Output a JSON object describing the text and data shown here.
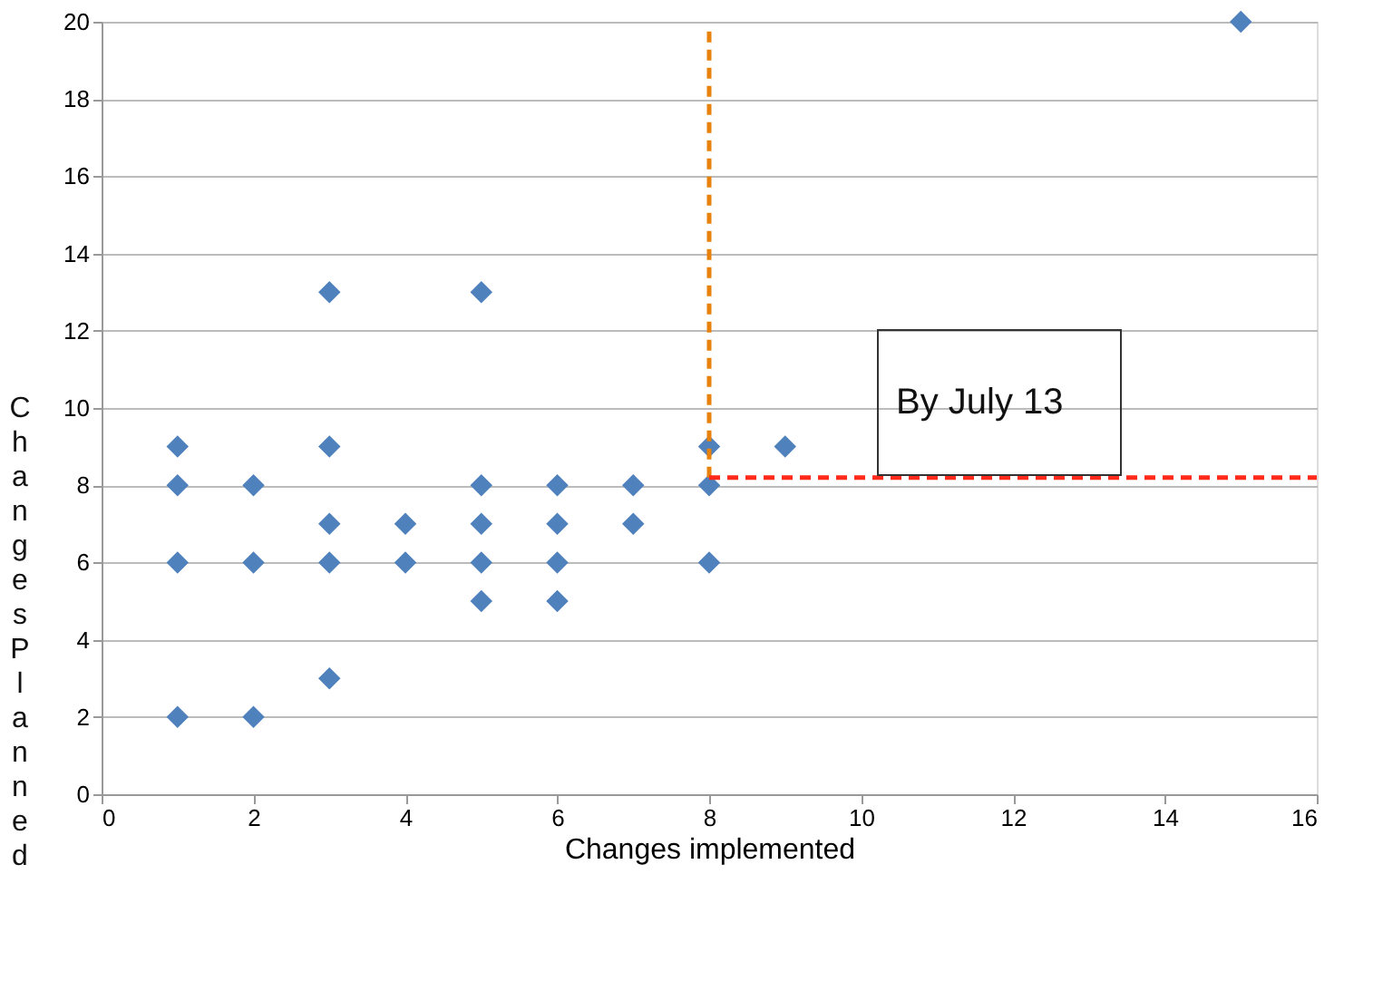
{
  "chart_data": {
    "type": "scatter",
    "xlabel": "Changes implemented",
    "ylabel": "Changes Planned",
    "xlim": [
      0,
      16
    ],
    "xticks": [
      0,
      2,
      4,
      6,
      8,
      10,
      12,
      14,
      16
    ],
    "ylim": [
      0,
      20
    ],
    "yticks": [
      0,
      2,
      4,
      6,
      8,
      10,
      12,
      14,
      16,
      18,
      20
    ],
    "grid": "y",
    "marker": "diamond",
    "series": [
      {
        "color": "#4f81bd",
        "x": [
          1,
          1,
          1,
          1,
          2,
          2,
          2,
          3,
          3,
          3,
          3,
          3,
          4,
          4,
          5,
          5,
          5,
          5,
          5,
          6,
          6,
          6,
          6,
          7,
          7,
          8,
          8,
          8,
          9,
          15
        ],
        "values": [
          9,
          8,
          6,
          2,
          8,
          6,
          2,
          13,
          9,
          7,
          6,
          3,
          7,
          6,
          13,
          8,
          7,
          6,
          5,
          8,
          7,
          6,
          5,
          8,
          7,
          9,
          8,
          6,
          9,
          20
        ]
      },
      {
        "type": "line",
        "color": "#e8820c",
        "line_style": "dashed",
        "marker": "none",
        "x": [
          8,
          8
        ],
        "values": [
          8.2,
          19.8
        ]
      },
      {
        "type": "line",
        "color": "#ff2a1a",
        "line_style": "dashed",
        "marker": "none",
        "x": [
          8,
          16
        ],
        "values": [
          8.2,
          8.2
        ]
      }
    ],
    "annotations": [
      "By July 13"
    ]
  }
}
